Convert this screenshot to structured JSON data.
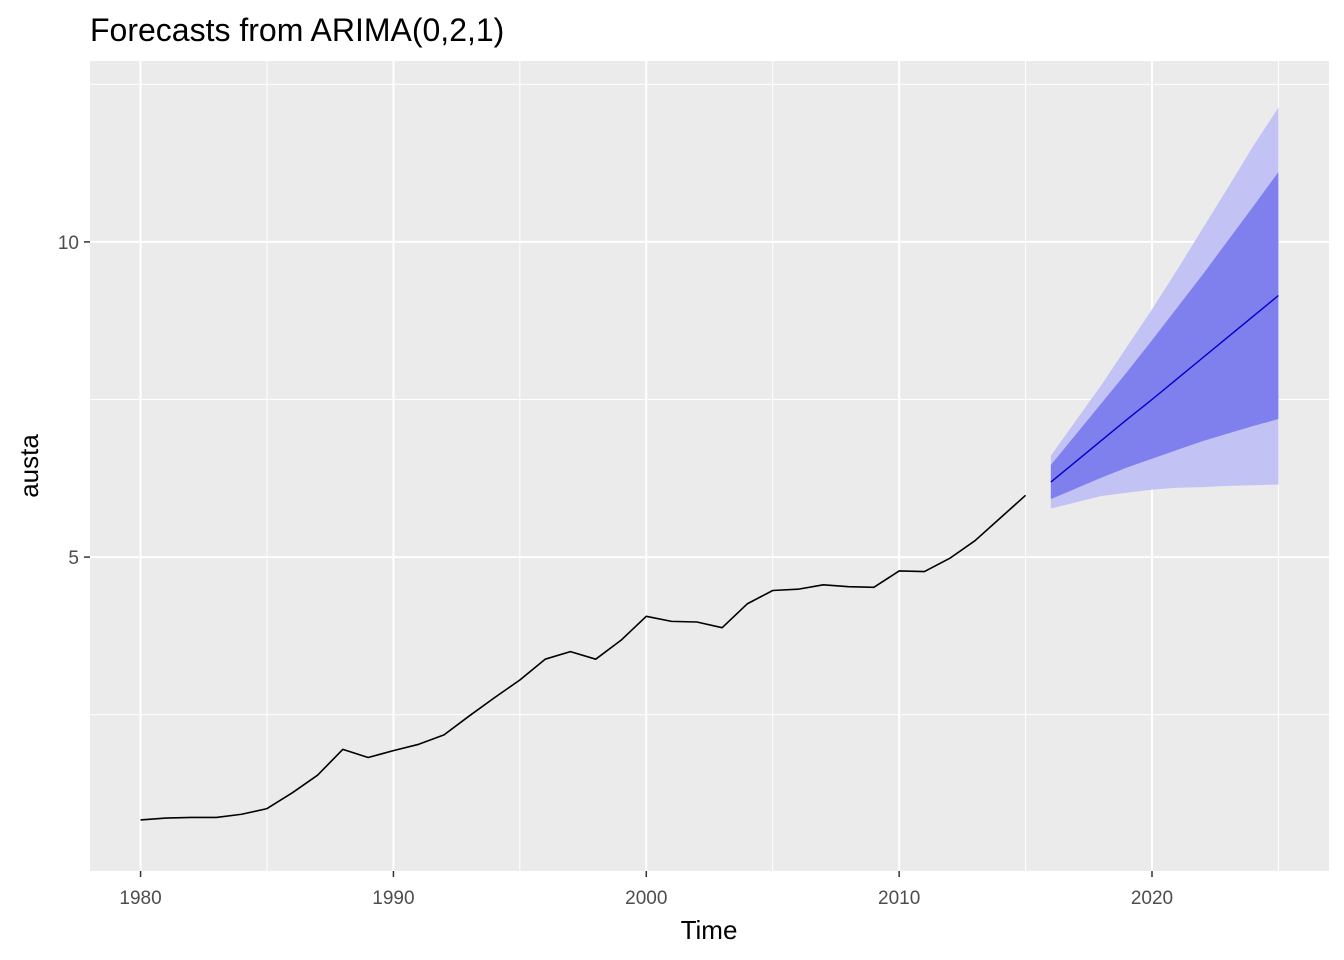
{
  "chart_data": {
    "type": "line",
    "title": "Forecasts from ARIMA(0,2,1)",
    "xlabel": "Time",
    "ylabel": "austa",
    "xlim": [
      1978,
      2027
    ],
    "ylim": [
      0.02,
      12.87
    ],
    "x_ticks": [
      1980,
      1990,
      2000,
      2010,
      2020
    ],
    "x_tick_labels": [
      "1980",
      "1990",
      "2000",
      "2010",
      "2020"
    ],
    "y_ticks": [
      5,
      10
    ],
    "y_tick_labels": [
      "5",
      "10"
    ],
    "grid": true,
    "background": "#ebebeb",
    "series": [
      {
        "type": "line",
        "color": "#000000",
        "x": [
          1980,
          1981,
          1982,
          1983,
          1984,
          1985,
          1986,
          1987,
          1988,
          1989,
          1990,
          1991,
          1992,
          1993,
          1994,
          1995,
          1996,
          1997,
          1998,
          1999,
          2000,
          2001,
          2002,
          2003,
          2004,
          2005,
          2006,
          2007,
          2008,
          2009,
          2010,
          2011,
          2012,
          2013,
          2014,
          2015
        ],
        "y": [
          0.83,
          0.86,
          0.87,
          0.87,
          0.92,
          1.01,
          1.26,
          1.54,
          1.95,
          1.82,
          1.93,
          2.03,
          2.18,
          2.48,
          2.77,
          3.05,
          3.38,
          3.5,
          3.38,
          3.68,
          4.06,
          3.98,
          3.97,
          3.88,
          4.26,
          4.47,
          4.49,
          4.56,
          4.53,
          4.52,
          4.78,
          4.77,
          4.98,
          5.26,
          5.62,
          5.98
        ]
      },
      {
        "type": "line",
        "color": "#0000cc",
        "x": [
          2016,
          2017,
          2018,
          2019,
          2020,
          2021,
          2022,
          2023,
          2024,
          2025
        ],
        "y": [
          6.19,
          6.52,
          6.85,
          7.18,
          7.5,
          7.83,
          8.16,
          8.49,
          8.82,
          9.15
        ]
      },
      {
        "type": "area",
        "level": "80%",
        "color": "#7f7fed",
        "x": [
          2016,
          2017,
          2018,
          2019,
          2020,
          2021,
          2022,
          2023,
          2024,
          2025
        ],
        "lower": [
          5.92,
          6.09,
          6.26,
          6.42,
          6.56,
          6.7,
          6.84,
          6.96,
          7.08,
          7.19
        ],
        "upper": [
          6.46,
          6.95,
          7.44,
          7.93,
          8.44,
          8.96,
          9.48,
          10.02,
          10.56,
          11.11
        ]
      },
      {
        "type": "area",
        "level": "95%",
        "color": "#c2c2f4",
        "x": [
          2016,
          2017,
          2018,
          2019,
          2020,
          2021,
          2022,
          2023,
          2024,
          2025
        ],
        "lower": [
          5.77,
          5.87,
          5.97,
          6.02,
          6.07,
          6.1,
          6.11,
          6.13,
          6.14,
          6.15
        ],
        "upper": [
          6.61,
          7.17,
          7.73,
          8.33,
          8.93,
          9.56,
          10.21,
          10.86,
          11.52,
          12.13
        ]
      }
    ]
  }
}
